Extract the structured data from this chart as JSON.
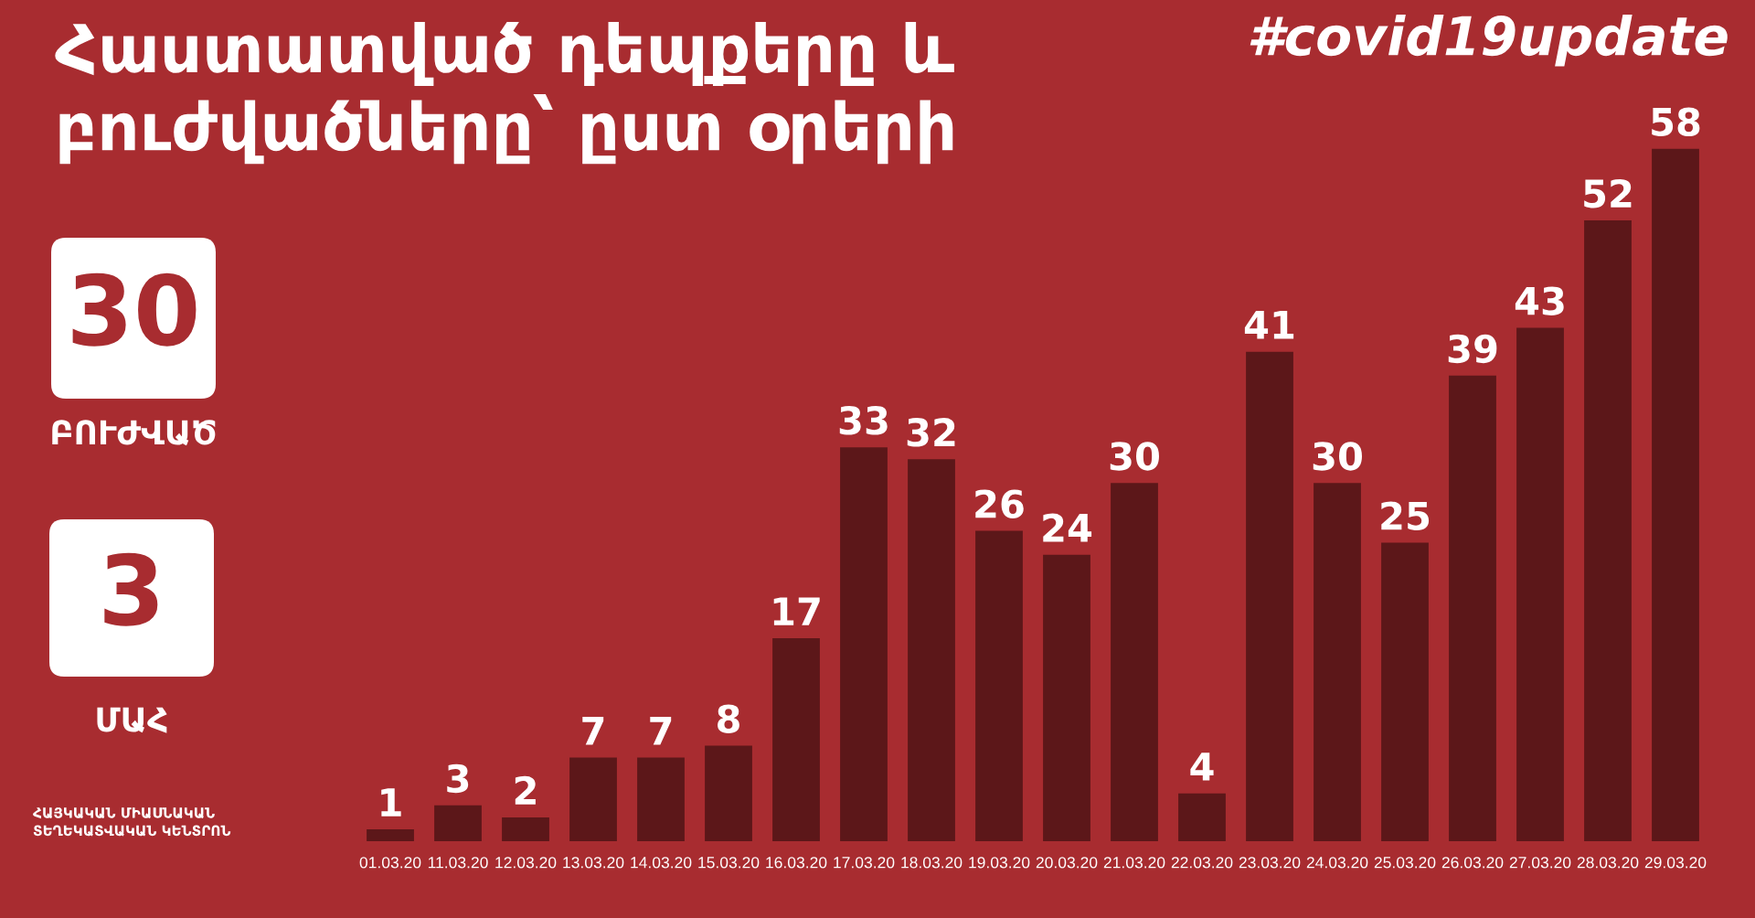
{
  "chart_data": [
    {
      "type": "bar",
      "title": "Հաստատված դեպքերը և\nբուժվածները՝ ըստ օրերի",
      "annotations": [
        "#covid19update"
      ],
      "categories": [
        "01.03.20",
        "11.03.20",
        "12.03.20",
        "13.03.20",
        "14.03.20",
        "15.03.20",
        "16.03.20",
        "17.03.20",
        "18.03.20",
        "19.03.20",
        "20.03.20",
        "21.03.20",
        "22.03.20",
        "23.03.20",
        "24.03.20",
        "25.03.20",
        "26.03.20",
        "27.03.20",
        "28.03.20",
        "29.03.20"
      ],
      "values": [
        1,
        3,
        2,
        7,
        7,
        8,
        17,
        33,
        32,
        26,
        24,
        30,
        4,
        41,
        30,
        25,
        39,
        43,
        52,
        58
      ],
      "color": "#5c1719",
      "data_labels": true,
      "tick_labels": "x"
    },
    {
      "type": "other",
      "annotations": [
        "30",
        "ԲՈՒԺՎԱԾ",
        "3",
        "ՄԱՀ",
        "ՀԱՅԿԱԿԱՆ ՄԻԱՍՆԱԿԱՆ\nՏԵՂԵԿԱՏՎԱԿԱՆ ԿԵՆՏՐՈՆ"
      ]
    }
  ]
}
